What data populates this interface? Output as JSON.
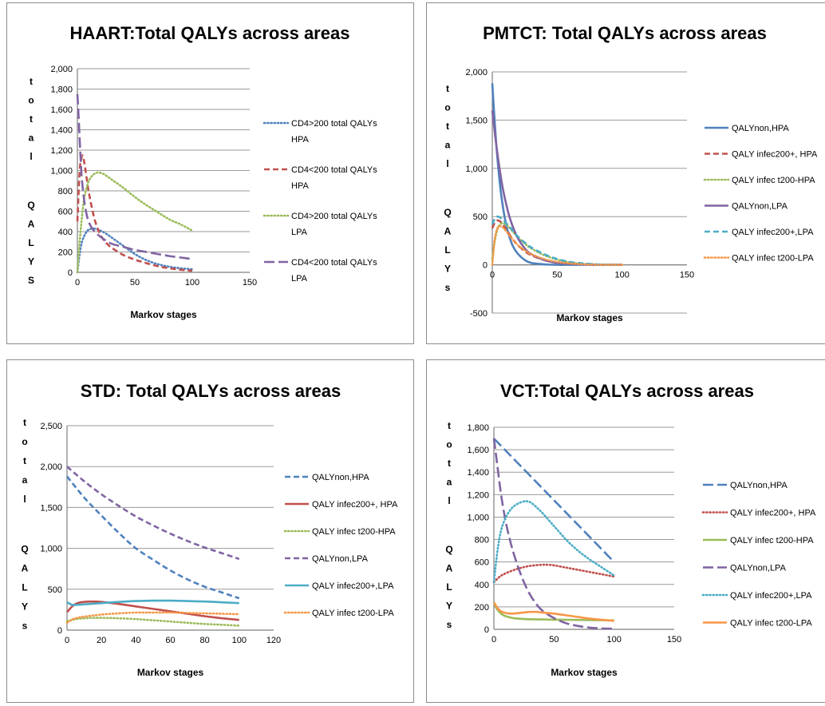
{
  "chart_data": [
    {
      "type": "line",
      "title": "HAART:Total QALYs across areas",
      "xlabel": "Markov stages",
      "ylabel": "total QALYS",
      "xlim": [
        0,
        150
      ],
      "ylim": [
        0,
        2000
      ],
      "xticks": [
        0,
        50,
        100,
        150
      ],
      "yticks": [
        0,
        200,
        400,
        600,
        800,
        1000,
        1200,
        1400,
        1600,
        1800,
        2000
      ],
      "xtick_labels": [
        "0",
        "50",
        "100",
        "150"
      ],
      "ytick_labels": [
        "0",
        "200",
        "400",
        "600",
        "800",
        "1,000",
        "1,200",
        "1,400",
        "1,600",
        "1,800",
        "2,000"
      ],
      "grid": "horizontal",
      "legend_position": "right",
      "series": [
        {
          "name": "CD4>200 total QALYs HPA",
          "color": "#4F81BD",
          "style": "dotted",
          "x": [
            0,
            2,
            4,
            7,
            10,
            15,
            20,
            25,
            30,
            40,
            50,
            60,
            70,
            80,
            90,
            100
          ],
          "y": [
            0,
            180,
            300,
            380,
            420,
            430,
            410,
            380,
            340,
            260,
            180,
            120,
            80,
            55,
            40,
            30
          ]
        },
        {
          "name": "CD4<200 total QALYs HPA",
          "color": "#C0504D",
          "style": "dashed",
          "x": [
            0,
            2,
            4,
            5,
            6,
            8,
            10,
            15,
            20,
            25,
            30,
            40,
            50,
            60,
            70,
            80,
            90,
            100
          ],
          "y": [
            500,
            1000,
            1140,
            1130,
            1080,
            930,
            780,
            520,
            370,
            290,
            240,
            170,
            125,
            90,
            60,
            40,
            25,
            15
          ]
        },
        {
          "name": "CD4>200 total QALYs LPA",
          "color": "#9BBB59",
          "style": "dotted",
          "x": [
            0,
            2,
            4,
            6,
            8,
            10,
            13,
            16,
            19,
            22,
            25,
            30,
            40,
            50,
            60,
            70,
            80,
            90,
            100
          ],
          "y": [
            0,
            300,
            550,
            730,
            830,
            900,
            950,
            975,
            980,
            970,
            950,
            910,
            830,
            740,
            660,
            590,
            520,
            470,
            410
          ]
        },
        {
          "name": "CD4<200 total QALYs LPA",
          "color": "#8064A2",
          "style": "longdash",
          "x": [
            0,
            1,
            2,
            3,
            4,
            6,
            8,
            10,
            13,
            16,
            20,
            25,
            30,
            40,
            50,
            60,
            70,
            80,
            90,
            100
          ],
          "y": [
            1750,
            1550,
            1300,
            1080,
            900,
            700,
            570,
            490,
            430,
            390,
            350,
            310,
            280,
            250,
            220,
            200,
            180,
            160,
            145,
            130
          ]
        }
      ]
    },
    {
      "type": "line",
      "title": "PMTCT: Total QALYs across areas",
      "xlabel": "Markov stages",
      "ylabel": "total QALYs",
      "xlim": [
        0,
        150
      ],
      "ylim": [
        -500,
        2000
      ],
      "xticks": [
        0,
        50,
        100,
        150
      ],
      "yticks": [
        -500,
        0,
        500,
        1000,
        1500,
        2000
      ],
      "xtick_labels": [
        "0",
        "50",
        "100",
        "150"
      ],
      "ytick_labels": [
        "-500",
        "0",
        "500",
        "1,000",
        "1,500",
        "2,000"
      ],
      "grid": "horizontal",
      "legend_position": "right",
      "series": [
        {
          "name": "QALYnon,HPA",
          "color": "#4F81BD",
          "style": "solid",
          "x": [
            0,
            2,
            4,
            6,
            8,
            10,
            13,
            16,
            20,
            25,
            30,
            40,
            50,
            60,
            80,
            100
          ],
          "y": [
            1880,
            1450,
            1100,
            820,
            620,
            460,
            300,
            190,
            110,
            50,
            20,
            5,
            0,
            0,
            0,
            0
          ]
        },
        {
          "name": "QALY infec200+, HPA",
          "color": "#C0504D",
          "style": "dashed",
          "x": [
            0,
            2,
            4,
            6,
            8,
            10,
            13,
            16,
            20,
            25,
            30,
            40,
            50,
            60,
            70,
            80,
            90,
            100
          ],
          "y": [
            380,
            440,
            460,
            450,
            420,
            380,
            320,
            260,
            200,
            140,
            100,
            50,
            25,
            10,
            5,
            0,
            0,
            0
          ]
        },
        {
          "name": "QALY infec t200-HPA",
          "color": "#9BBB59",
          "style": "dotted",
          "x": [
            0,
            2,
            4,
            6,
            8,
            10,
            13,
            16,
            20,
            25,
            30,
            40,
            50,
            60,
            70,
            80,
            90,
            100
          ],
          "y": [
            60,
            250,
            370,
            420,
            430,
            420,
            390,
            340,
            280,
            220,
            170,
            100,
            55,
            25,
            10,
            5,
            0,
            0
          ]
        },
        {
          "name": "QALYnon,LPA",
          "color": "#8064A2",
          "style": "solid",
          "x": [
            0,
            2,
            4,
            6,
            8,
            10,
            13,
            16,
            20,
            25,
            30,
            40,
            50,
            60,
            70,
            80,
            90,
            100
          ],
          "y": [
            1600,
            1360,
            1150,
            960,
            800,
            670,
            510,
            390,
            270,
            170,
            110,
            50,
            20,
            10,
            5,
            0,
            0,
            0
          ]
        },
        {
          "name": "QALY infec200+,LPA",
          "color": "#4BACC6",
          "style": "dashed",
          "x": [
            0,
            2,
            4,
            6,
            8,
            10,
            13,
            16,
            20,
            25,
            30,
            40,
            50,
            60,
            70,
            80,
            90,
            100
          ],
          "y": [
            420,
            480,
            500,
            490,
            470,
            440,
            400,
            350,
            290,
            230,
            180,
            110,
            60,
            30,
            15,
            5,
            0,
            0
          ]
        },
        {
          "name": "QALY infec t200-LPA",
          "color": "#F79646",
          "style": "dotted",
          "x": [
            0,
            1,
            2,
            4,
            6,
            8,
            10,
            13,
            16,
            20,
            25,
            30,
            40,
            50,
            60,
            70,
            80,
            90,
            100
          ],
          "y": [
            0,
            150,
            280,
            380,
            400,
            390,
            360,
            310,
            260,
            200,
            150,
            110,
            60,
            30,
            15,
            5,
            0,
            0,
            0
          ]
        }
      ]
    },
    {
      "type": "line",
      "title": "STD: Total QALYs across areas",
      "xlabel": "Markov stages",
      "ylabel": "total QALYs",
      "xlim": [
        0,
        120
      ],
      "ylim": [
        0,
        2500
      ],
      "xticks": [
        0,
        20,
        40,
        60,
        80,
        100,
        120
      ],
      "yticks": [
        0,
        500,
        1000,
        1500,
        2000,
        2500
      ],
      "xtick_labels": [
        "0",
        "20",
        "40",
        "60",
        "80",
        "100",
        "120"
      ],
      "ytick_labels": [
        "0",
        "500",
        "1,000",
        "1,500",
        "2,000",
        "2,500"
      ],
      "grid": "horizontal",
      "legend_position": "right",
      "series": [
        {
          "name": "QALYnon,HPA",
          "color": "#4F81BD",
          "style": "dashed",
          "x": [
            0,
            10,
            20,
            30,
            40,
            50,
            60,
            70,
            80,
            90,
            100
          ],
          "y": [
            1880,
            1620,
            1400,
            1190,
            1000,
            860,
            730,
            620,
            530,
            460,
            390
          ]
        },
        {
          "name": "QALY infec200+, HPA",
          "color": "#C0504D",
          "style": "solid",
          "x": [
            0,
            3,
            6,
            10,
            15,
            20,
            30,
            40,
            50,
            60,
            70,
            80,
            90,
            100
          ],
          "y": [
            220,
            290,
            330,
            345,
            350,
            345,
            320,
            290,
            260,
            230,
            200,
            170,
            145,
            125
          ]
        },
        {
          "name": "QALY infec t200-HPA",
          "color": "#9BBB59",
          "style": "dotted",
          "x": [
            0,
            5,
            10,
            15,
            20,
            25,
            30,
            40,
            50,
            60,
            70,
            80,
            90,
            100
          ],
          "y": [
            110,
            135,
            145,
            150,
            150,
            148,
            145,
            135,
            120,
            105,
            90,
            75,
            65,
            55
          ]
        },
        {
          "name": "QALYnon,LPA",
          "color": "#8064A2",
          "style": "dashed",
          "x": [
            0,
            10,
            20,
            30,
            40,
            50,
            60,
            70,
            80,
            90,
            100
          ],
          "y": [
            2000,
            1820,
            1660,
            1520,
            1390,
            1280,
            1180,
            1090,
            1010,
            940,
            870
          ]
        },
        {
          "name": "QALY infec200+,LPA",
          "color": "#4BACC6",
          "style": "solid",
          "x": [
            0,
            3,
            6,
            10,
            20,
            30,
            40,
            50,
            60,
            70,
            80,
            90,
            100
          ],
          "y": [
            340,
            310,
            310,
            315,
            330,
            345,
            355,
            360,
            360,
            355,
            350,
            340,
            330
          ]
        },
        {
          "name": "QALY infec t200-LPA",
          "color": "#F79646",
          "style": "dotted",
          "x": [
            0,
            3,
            6,
            10,
            20,
            30,
            40,
            50,
            60,
            70,
            80,
            90,
            100
          ],
          "y": [
            90,
            130,
            150,
            165,
            190,
            205,
            215,
            215,
            215,
            210,
            205,
            200,
            195
          ]
        }
      ]
    },
    {
      "type": "line",
      "title": "VCT:Total QALYs across  areas",
      "xlabel": "Markov stages",
      "ylabel": "total QALYs",
      "xlim": [
        0,
        150
      ],
      "ylim": [
        0,
        1800
      ],
      "xticks": [
        0,
        50,
        100,
        150
      ],
      "yticks": [
        0,
        200,
        400,
        600,
        800,
        1000,
        1200,
        1400,
        1600,
        1800
      ],
      "xtick_labels": [
        "0",
        "50",
        "100",
        "150"
      ],
      "ytick_labels": [
        "0",
        "200",
        "400",
        "600",
        "800",
        "1,000",
        "1,200",
        "1,400",
        "1,600",
        "1,800"
      ],
      "grid": "horizontal",
      "legend_position": "right",
      "series": [
        {
          "name": "QALYnon,HPA",
          "color": "#4F81BD",
          "style": "longdash",
          "x": [
            0,
            10,
            20,
            30,
            40,
            50,
            60,
            70,
            80,
            90,
            100
          ],
          "y": [
            1700,
            1590,
            1480,
            1370,
            1260,
            1150,
            1040,
            930,
            820,
            710,
            600
          ]
        },
        {
          "name": "QALY infec200+, HPA",
          "color": "#C0504D",
          "style": "dotted",
          "x": [
            0,
            5,
            10,
            20,
            30,
            40,
            45,
            50,
            60,
            70,
            80,
            90,
            100
          ],
          "y": [
            420,
            470,
            500,
            540,
            565,
            575,
            575,
            570,
            550,
            530,
            510,
            490,
            470
          ]
        },
        {
          "name": "QALY infec t200-HPA",
          "color": "#9BBB59",
          "style": "solid",
          "x": [
            0,
            2,
            5,
            8,
            12,
            16,
            20,
            30,
            40,
            50,
            60,
            70,
            80,
            90,
            100
          ],
          "y": [
            240,
            190,
            150,
            125,
            110,
            100,
            95,
            90,
            88,
            86,
            85,
            84,
            82,
            81,
            80
          ]
        },
        {
          "name": "QALYnon,LPA",
          "color": "#8064A2",
          "style": "longdash",
          "x": [
            0,
            3,
            6,
            10,
            15,
            20,
            25,
            30,
            35,
            40,
            50,
            60,
            70,
            80,
            90,
            100
          ],
          "y": [
            1700,
            1450,
            1200,
            950,
            730,
            560,
            420,
            310,
            230,
            170,
            100,
            55,
            30,
            15,
            8,
            5
          ]
        },
        {
          "name": "QALY infec200+,LPA",
          "color": "#4BACC6",
          "style": "dotted",
          "x": [
            0,
            3,
            6,
            10,
            15,
            20,
            25,
            28,
            32,
            40,
            50,
            60,
            70,
            80,
            90,
            100
          ],
          "y": [
            420,
            700,
            880,
            1000,
            1080,
            1120,
            1140,
            1140,
            1120,
            1040,
            920,
            800,
            700,
            620,
            550,
            480
          ]
        },
        {
          "name": "QALY infec t200-LPA",
          "color": "#F79646",
          "style": "solid",
          "x": [
            0,
            3,
            6,
            10,
            15,
            20,
            25,
            30,
            35,
            40,
            50,
            60,
            70,
            80,
            90,
            100
          ],
          "y": [
            240,
            190,
            160,
            145,
            140,
            145,
            150,
            155,
            155,
            150,
            140,
            125,
            110,
            95,
            85,
            75
          ]
        }
      ]
    }
  ]
}
